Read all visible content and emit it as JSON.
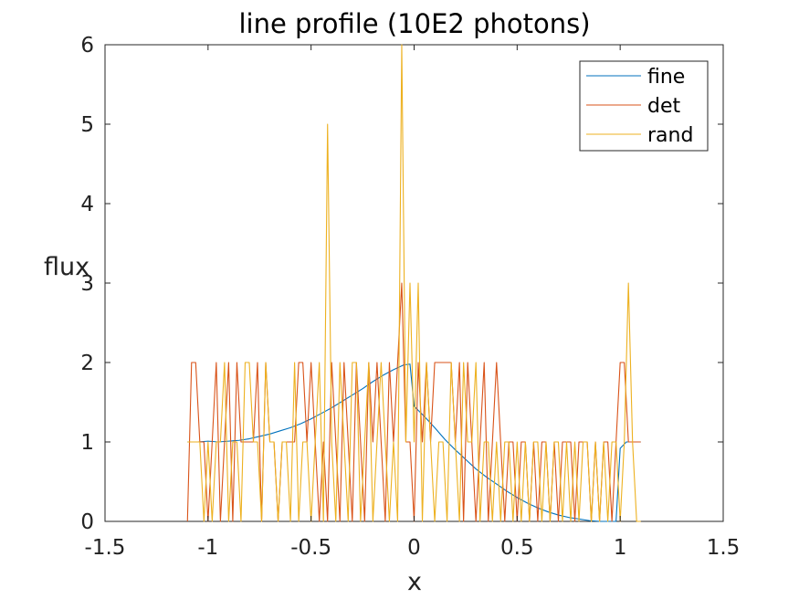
{
  "chart_data": {
    "type": "line",
    "title": "line profile (10E2 photons)",
    "xlabel": "x",
    "ylabel": "flux",
    "xlim": [
      -1.5,
      1.5
    ],
    "ylim": [
      0,
      6
    ],
    "xticks": [
      -1.5,
      -1,
      -0.5,
      0,
      0.5,
      1,
      1.5
    ],
    "xtick_labels": [
      "-1.5",
      "-1",
      "-0.5",
      "0",
      "0.5",
      "1",
      "1.5"
    ],
    "yticks": [
      0,
      1,
      2,
      3,
      4,
      5,
      6
    ],
    "ytick_labels": [
      "0",
      "1",
      "2",
      "3",
      "4",
      "5",
      "6"
    ],
    "grid": false,
    "legend_position": "top-right",
    "series": [
      {
        "name": "fine",
        "color": "#0072bd",
        "x": [
          -1.1,
          -1.05,
          -1.0,
          -0.95,
          -0.9,
          -0.85,
          -0.8,
          -0.75,
          -0.7,
          -0.65,
          -0.6,
          -0.55,
          -0.5,
          -0.45,
          -0.4,
          -0.35,
          -0.3,
          -0.25,
          -0.2,
          -0.15,
          -0.1,
          -0.05,
          -0.02,
          0.0,
          0.05,
          0.1,
          0.15,
          0.2,
          0.25,
          0.3,
          0.35,
          0.4,
          0.45,
          0.5,
          0.55,
          0.6,
          0.65,
          0.7,
          0.75,
          0.8,
          0.85,
          0.9,
          0.95,
          0.98,
          1.0,
          1.03,
          1.05,
          1.1
        ],
        "y": [
          1.0,
          1.0,
          1.01,
          1.0,
          1.01,
          1.02,
          1.04,
          1.07,
          1.1,
          1.14,
          1.18,
          1.23,
          1.29,
          1.36,
          1.43,
          1.51,
          1.59,
          1.67,
          1.76,
          1.84,
          1.91,
          1.97,
          1.98,
          1.45,
          1.32,
          1.18,
          1.03,
          0.9,
          0.78,
          0.66,
          0.56,
          0.47,
          0.38,
          0.3,
          0.23,
          0.17,
          0.12,
          0.08,
          0.05,
          0.03,
          0.01,
          0.0,
          0.0,
          0.0,
          0.92,
          1.0,
          1.0,
          1.0
        ]
      },
      {
        "name": "det",
        "color": "#d95319",
        "x": [
          -1.1,
          -1.08,
          -1.06,
          -1.04,
          -1.02,
          -1.0,
          -0.98,
          -0.96,
          -0.94,
          -0.92,
          -0.9,
          -0.88,
          -0.86,
          -0.84,
          -0.82,
          -0.8,
          -0.78,
          -0.76,
          -0.74,
          -0.72,
          -0.7,
          -0.68,
          -0.66,
          -0.64,
          -0.62,
          -0.6,
          -0.58,
          -0.56,
          -0.54,
          -0.52,
          -0.5,
          -0.48,
          -0.46,
          -0.44,
          -0.42,
          -0.4,
          -0.38,
          -0.36,
          -0.34,
          -0.32,
          -0.3,
          -0.28,
          -0.26,
          -0.24,
          -0.22,
          -0.2,
          -0.18,
          -0.16,
          -0.14,
          -0.12,
          -0.1,
          -0.08,
          -0.06,
          -0.04,
          -0.02,
          0.0,
          0.02,
          0.04,
          0.06,
          0.08,
          0.1,
          0.12,
          0.14,
          0.16,
          0.18,
          0.2,
          0.22,
          0.24,
          0.26,
          0.28,
          0.3,
          0.32,
          0.34,
          0.36,
          0.38,
          0.4,
          0.42,
          0.44,
          0.46,
          0.48,
          0.5,
          0.52,
          0.54,
          0.56,
          0.58,
          0.6,
          0.62,
          0.64,
          0.66,
          0.68,
          0.7,
          0.72,
          0.74,
          0.76,
          0.78,
          0.8,
          0.82,
          0.84,
          0.86,
          0.88,
          0.9,
          0.92,
          0.94,
          0.96,
          0.98,
          1.0,
          1.02,
          1.04,
          1.06,
          1.08,
          1.1
        ],
        "y": [
          0,
          2,
          2,
          1,
          1,
          0,
          1,
          2,
          0,
          1,
          2,
          0,
          2,
          1,
          1,
          1,
          1,
          2,
          0,
          2,
          1,
          1,
          0,
          1,
          1,
          1,
          1,
          2,
          2,
          1,
          2,
          1,
          0,
          1,
          0,
          2,
          1,
          0,
          2,
          1,
          0,
          2,
          1,
          0,
          2,
          1,
          2,
          1,
          0,
          2,
          1,
          2,
          3,
          1,
          1,
          0,
          2,
          1,
          2,
          1,
          2,
          2,
          2,
          2,
          2,
          1,
          2,
          0,
          2,
          1,
          0,
          1,
          2,
          0,
          1,
          2,
          1,
          0,
          1,
          1,
          0,
          1,
          1,
          0,
          1,
          0,
          1,
          1,
          0,
          1,
          0,
          1,
          1,
          1,
          0,
          1,
          1,
          1,
          0,
          1,
          0,
          1,
          1,
          0,
          1,
          2,
          2,
          1,
          1,
          1,
          1
        ]
      },
      {
        "name": "rand",
        "color": "#edb120",
        "x": [
          -1.1,
          -1.08,
          -1.06,
          -1.04,
          -1.02,
          -1.0,
          -0.98,
          -0.96,
          -0.94,
          -0.92,
          -0.9,
          -0.88,
          -0.86,
          -0.84,
          -0.82,
          -0.8,
          -0.78,
          -0.76,
          -0.74,
          -0.72,
          -0.7,
          -0.68,
          -0.66,
          -0.64,
          -0.62,
          -0.6,
          -0.58,
          -0.56,
          -0.54,
          -0.52,
          -0.5,
          -0.48,
          -0.46,
          -0.44,
          -0.42,
          -0.4,
          -0.38,
          -0.36,
          -0.34,
          -0.32,
          -0.3,
          -0.28,
          -0.26,
          -0.24,
          -0.22,
          -0.2,
          -0.18,
          -0.16,
          -0.14,
          -0.12,
          -0.1,
          -0.08,
          -0.06,
          -0.04,
          -0.02,
          0.0,
          0.02,
          0.04,
          0.06,
          0.08,
          0.1,
          0.12,
          0.14,
          0.16,
          0.18,
          0.2,
          0.22,
          0.24,
          0.26,
          0.28,
          0.3,
          0.32,
          0.34,
          0.36,
          0.38,
          0.4,
          0.42,
          0.44,
          0.46,
          0.48,
          0.5,
          0.52,
          0.54,
          0.56,
          0.58,
          0.6,
          0.62,
          0.64,
          0.66,
          0.68,
          0.7,
          0.72,
          0.74,
          0.76,
          0.78,
          0.8,
          0.82,
          0.84,
          0.86,
          0.88,
          0.9,
          0.92,
          0.94,
          0.96,
          0.98,
          1.0,
          1.02,
          1.04,
          1.06,
          1.08,
          1.1
        ],
        "y": [
          1,
          1,
          1,
          1,
          0,
          1,
          0,
          1,
          1,
          2,
          0,
          1,
          1,
          0,
          2,
          2,
          1,
          1,
          0,
          2,
          1,
          1,
          0,
          1,
          1,
          0,
          2,
          0,
          1,
          1,
          0,
          1,
          2,
          0,
          5,
          1,
          0,
          2,
          1,
          0,
          2,
          2,
          0,
          1,
          2,
          0,
          1,
          2,
          1,
          0,
          1,
          0,
          6,
          1,
          3,
          1,
          3,
          0,
          2,
          1,
          0,
          1,
          1,
          0,
          2,
          1,
          0,
          2,
          1,
          1,
          2,
          0,
          1,
          1,
          0,
          1,
          0,
          1,
          1,
          0,
          1,
          0,
          1,
          0,
          1,
          1,
          0,
          1,
          0,
          1,
          1,
          0,
          1,
          0,
          1,
          0,
          1,
          1,
          0,
          1,
          0,
          1,
          0,
          1,
          1,
          0,
          1,
          3,
          1,
          0,
          0
        ]
      }
    ]
  }
}
